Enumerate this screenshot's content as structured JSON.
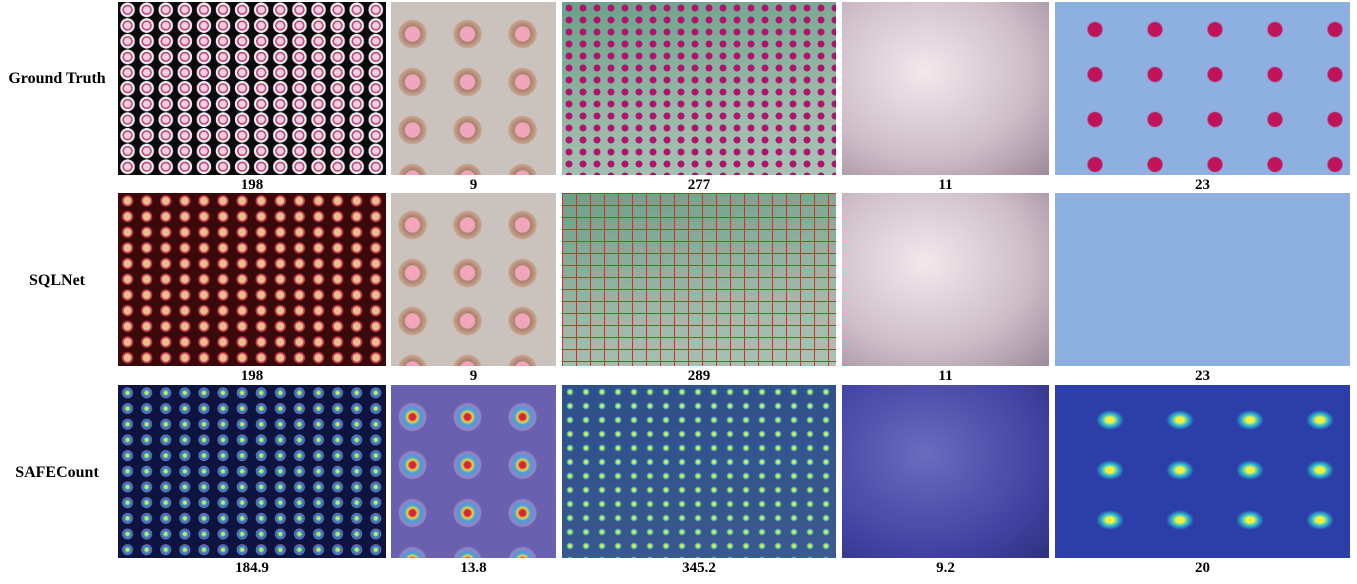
{
  "rows": [
    {
      "label": "Ground Truth",
      "counts": [
        "198",
        "9",
        "277",
        "11",
        "23"
      ]
    },
    {
      "label": "SQLNet",
      "counts": [
        "198",
        "9",
        "289",
        "11",
        "23"
      ]
    },
    {
      "label": "SAFECount",
      "counts": [
        "184.9",
        "13.8",
        "345.2",
        "9.2",
        "20"
      ]
    }
  ]
}
